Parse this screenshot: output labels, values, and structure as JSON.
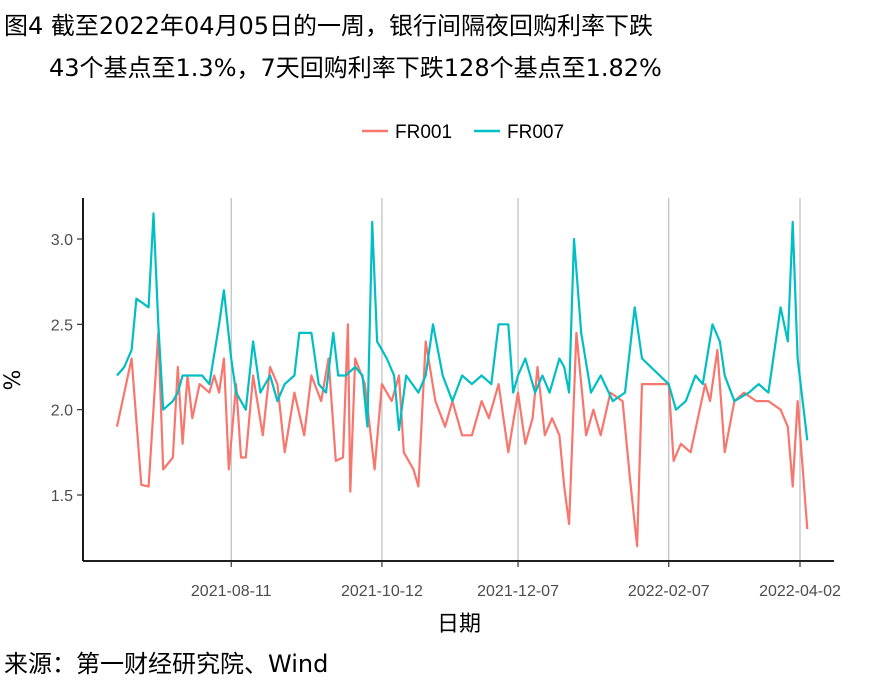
{
  "title_line1": "图4  截至2022年04月05日的一周，银行间隔夜回购利率下跌",
  "title_line2": "43个基点至1.3%，7天回购利率下跌128个基点至1.82%",
  "source": "来源：第一财经研究院、Wind",
  "chart_data": {
    "type": "line",
    "title": "",
    "xlabel": "日期",
    "ylabel": "%",
    "x_range": [
      "2021-06-25",
      "2022-04-05"
    ],
    "ylim": [
      1.1,
      3.25
    ],
    "y_ticks": [
      1.5,
      2.0,
      2.5,
      3.0
    ],
    "y_tick_labels": [
      "1.5",
      "2.0",
      "2.5",
      "3.0"
    ],
    "x_ticks": [
      "2021-08-11",
      "2021-10-12",
      "2021-12-07",
      "2022-02-07",
      "2022-04-02"
    ],
    "x_tick_labels": [
      "2021-08-11",
      "2021-10-12",
      "2021-12-07",
      "2022-02-07",
      "2022-04-02"
    ],
    "grid": "vertical major gridlines",
    "legend_position": "top",
    "series": [
      {
        "name": "FR001",
        "color": "#F8766D",
        "points": [
          [
            "2021-06-25",
            1.9
          ],
          [
            "2021-06-28",
            2.1
          ],
          [
            "2021-07-01",
            2.3
          ],
          [
            "2021-07-05",
            1.56
          ],
          [
            "2021-07-08",
            1.55
          ],
          [
            "2021-07-12",
            2.45
          ],
          [
            "2021-07-14",
            1.65
          ],
          [
            "2021-07-18",
            1.72
          ],
          [
            "2021-07-20",
            2.25
          ],
          [
            "2021-07-22",
            1.8
          ],
          [
            "2021-07-24",
            2.2
          ],
          [
            "2021-07-26",
            1.95
          ],
          [
            "2021-07-29",
            2.15
          ],
          [
            "2021-08-02",
            2.1
          ],
          [
            "2021-08-04",
            2.2
          ],
          [
            "2021-08-06",
            2.1
          ],
          [
            "2021-08-08",
            2.3
          ],
          [
            "2021-08-10",
            1.65
          ],
          [
            "2021-08-13",
            2.15
          ],
          [
            "2021-08-15",
            1.72
          ],
          [
            "2021-08-17",
            1.72
          ],
          [
            "2021-08-20",
            2.2
          ],
          [
            "2021-08-24",
            1.85
          ],
          [
            "2021-08-27",
            2.25
          ],
          [
            "2021-08-30",
            2.15
          ],
          [
            "2021-09-02",
            1.75
          ],
          [
            "2021-09-06",
            2.1
          ],
          [
            "2021-09-10",
            1.85
          ],
          [
            "2021-09-13",
            2.2
          ],
          [
            "2021-09-17",
            2.05
          ],
          [
            "2021-09-20",
            2.3
          ],
          [
            "2021-09-23",
            1.7
          ],
          [
            "2021-09-26",
            1.72
          ],
          [
            "2021-09-28",
            2.5
          ],
          [
            "2021-09-29",
            1.52
          ],
          [
            "2021-10-01",
            2.3
          ],
          [
            "2021-10-05",
            2.15
          ],
          [
            "2021-10-09",
            1.65
          ],
          [
            "2021-10-12",
            2.15
          ],
          [
            "2021-10-16",
            2.05
          ],
          [
            "2021-10-19",
            2.2
          ],
          [
            "2021-10-21",
            1.75
          ],
          [
            "2021-10-25",
            1.65
          ],
          [
            "2021-10-27",
            1.55
          ],
          [
            "2021-10-30",
            2.4
          ],
          [
            "2021-11-03",
            2.05
          ],
          [
            "2021-11-07",
            1.9
          ],
          [
            "2021-11-10",
            2.05
          ],
          [
            "2021-11-14",
            1.85
          ],
          [
            "2021-11-18",
            1.85
          ],
          [
            "2021-11-22",
            2.05
          ],
          [
            "2021-11-25",
            1.95
          ],
          [
            "2021-11-29",
            2.15
          ],
          [
            "2021-12-03",
            1.75
          ],
          [
            "2021-12-07",
            2.1
          ],
          [
            "2021-12-10",
            1.8
          ],
          [
            "2021-12-13",
            1.95
          ],
          [
            "2021-12-15",
            2.25
          ],
          [
            "2021-12-18",
            1.85
          ],
          [
            "2021-12-21",
            1.95
          ],
          [
            "2021-12-24",
            1.85
          ],
          [
            "2021-12-26",
            1.55
          ],
          [
            "2021-12-28",
            1.33
          ],
          [
            "2021-12-31",
            2.45
          ],
          [
            "2022-01-04",
            1.85
          ],
          [
            "2022-01-07",
            2.0
          ],
          [
            "2022-01-10",
            1.85
          ],
          [
            "2022-01-14",
            2.1
          ],
          [
            "2022-01-19",
            2.05
          ],
          [
            "2022-01-22",
            1.6
          ],
          [
            "2022-01-25",
            1.2
          ],
          [
            "2022-01-27",
            2.15
          ],
          [
            "2022-02-07",
            2.15
          ],
          [
            "2022-02-09",
            1.7
          ],
          [
            "2022-02-12",
            1.8
          ],
          [
            "2022-02-16",
            1.75
          ],
          [
            "2022-02-19",
            1.95
          ],
          [
            "2022-02-22",
            2.15
          ],
          [
            "2022-02-24",
            2.05
          ],
          [
            "2022-02-27",
            2.35
          ],
          [
            "2022-03-02",
            1.75
          ],
          [
            "2022-03-06",
            2.05
          ],
          [
            "2022-03-10",
            2.1
          ],
          [
            "2022-03-15",
            2.05
          ],
          [
            "2022-03-20",
            2.05
          ],
          [
            "2022-03-25",
            2.0
          ],
          [
            "2022-03-28",
            1.9
          ],
          [
            "2022-03-30",
            1.55
          ],
          [
            "2022-04-01",
            2.05
          ],
          [
            "2022-04-05",
            1.3
          ]
        ]
      },
      {
        "name": "FR007",
        "color": "#00BFC4",
        "points": [
          [
            "2021-06-25",
            2.2
          ],
          [
            "2021-06-28",
            2.25
          ],
          [
            "2021-07-01",
            2.35
          ],
          [
            "2021-07-03",
            2.65
          ],
          [
            "2021-07-08",
            2.6
          ],
          [
            "2021-07-10",
            3.15
          ],
          [
            "2021-07-12",
            2.5
          ],
          [
            "2021-07-14",
            2.0
          ],
          [
            "2021-07-18",
            2.05
          ],
          [
            "2021-07-20",
            2.1
          ],
          [
            "2021-07-22",
            2.2
          ],
          [
            "2021-07-26",
            2.2
          ],
          [
            "2021-07-30",
            2.2
          ],
          [
            "2021-08-02",
            2.15
          ],
          [
            "2021-08-06",
            2.5
          ],
          [
            "2021-08-08",
            2.7
          ],
          [
            "2021-08-11",
            2.3
          ],
          [
            "2021-08-13",
            2.1
          ],
          [
            "2021-08-17",
            2.0
          ],
          [
            "2021-08-20",
            2.4
          ],
          [
            "2021-08-23",
            2.1
          ],
          [
            "2021-08-27",
            2.2
          ],
          [
            "2021-08-30",
            2.05
          ],
          [
            "2021-09-02",
            2.15
          ],
          [
            "2021-09-06",
            2.2
          ],
          [
            "2021-09-08",
            2.45
          ],
          [
            "2021-09-13",
            2.45
          ],
          [
            "2021-09-16",
            2.15
          ],
          [
            "2021-09-19",
            2.1
          ],
          [
            "2021-09-22",
            2.45
          ],
          [
            "2021-09-24",
            2.2
          ],
          [
            "2021-09-27",
            2.2
          ],
          [
            "2021-10-01",
            2.25
          ],
          [
            "2021-10-04",
            2.2
          ],
          [
            "2021-10-06",
            1.9
          ],
          [
            "2021-10-08",
            3.1
          ],
          [
            "2021-10-10",
            2.4
          ],
          [
            "2021-10-14",
            2.3
          ],
          [
            "2021-10-17",
            2.2
          ],
          [
            "2021-10-19",
            1.88
          ],
          [
            "2021-10-22",
            2.2
          ],
          [
            "2021-10-27",
            2.1
          ],
          [
            "2021-10-30",
            2.2
          ],
          [
            "2021-11-02",
            2.5
          ],
          [
            "2021-11-06",
            2.2
          ],
          [
            "2021-11-10",
            2.05
          ],
          [
            "2021-11-14",
            2.2
          ],
          [
            "2021-11-18",
            2.15
          ],
          [
            "2021-11-22",
            2.2
          ],
          [
            "2021-11-26",
            2.15
          ],
          [
            "2021-11-29",
            2.5
          ],
          [
            "2021-12-03",
            2.5
          ],
          [
            "2021-12-05",
            2.1
          ],
          [
            "2021-12-07",
            2.2
          ],
          [
            "2021-12-10",
            2.3
          ],
          [
            "2021-12-14",
            2.1
          ],
          [
            "2021-12-17",
            2.2
          ],
          [
            "2021-12-20",
            2.1
          ],
          [
            "2021-12-24",
            2.3
          ],
          [
            "2021-12-26",
            2.25
          ],
          [
            "2021-12-28",
            2.1
          ],
          [
            "2021-12-30",
            3.0
          ],
          [
            "2022-01-02",
            2.45
          ],
          [
            "2022-01-06",
            2.1
          ],
          [
            "2022-01-10",
            2.2
          ],
          [
            "2022-01-15",
            2.05
          ],
          [
            "2022-01-20",
            2.1
          ],
          [
            "2022-01-24",
            2.6
          ],
          [
            "2022-01-27",
            2.3
          ],
          [
            "2022-02-07",
            2.15
          ],
          [
            "2022-02-10",
            2.0
          ],
          [
            "2022-02-14",
            2.05
          ],
          [
            "2022-02-18",
            2.2
          ],
          [
            "2022-02-21",
            2.15
          ],
          [
            "2022-02-25",
            2.5
          ],
          [
            "2022-02-28",
            2.4
          ],
          [
            "2022-03-02",
            2.2
          ],
          [
            "2022-03-06",
            2.05
          ],
          [
            "2022-03-12",
            2.1
          ],
          [
            "2022-03-16",
            2.15
          ],
          [
            "2022-03-20",
            2.1
          ],
          [
            "2022-03-25",
            2.6
          ],
          [
            "2022-03-28",
            2.4
          ],
          [
            "2022-03-30",
            3.1
          ],
          [
            "2022-04-01",
            2.3
          ],
          [
            "2022-04-05",
            1.82
          ]
        ]
      }
    ]
  }
}
